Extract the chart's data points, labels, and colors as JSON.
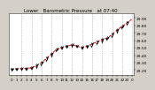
{
  "title": "Lower   Barometric Pressure   at 07:40",
  "hours": [
    0,
    1,
    2,
    3,
    4,
    5,
    6,
    7,
    8,
    9,
    10,
    11,
    12,
    13,
    14,
    15,
    16,
    17,
    18,
    19,
    20,
    21,
    22,
    23,
    24
  ],
  "pressure": [
    29.21,
    29.21,
    29.22,
    29.22,
    29.23,
    29.26,
    29.3,
    29.36,
    29.42,
    29.48,
    29.5,
    29.52,
    29.54,
    29.52,
    29.5,
    29.52,
    29.55,
    29.58,
    29.61,
    29.63,
    29.68,
    29.74,
    29.79,
    29.84,
    29.89
  ],
  "scatter_hours": [
    0.0,
    0.1,
    0.2,
    0.9,
    1.0,
    1.1,
    1.9,
    2.0,
    2.1,
    2.9,
    3.0,
    3.1,
    3.9,
    4.0,
    4.1,
    4.9,
    5.0,
    5.1,
    5.9,
    6.0,
    6.1,
    6.9,
    7.0,
    7.1,
    7.9,
    8.0,
    8.1,
    8.9,
    9.0,
    9.1,
    9.9,
    10.0,
    10.1,
    10.9,
    11.0,
    11.1,
    11.9,
    12.0,
    12.1,
    12.9,
    13.0,
    13.1,
    13.9,
    14.0,
    14.1,
    14.9,
    15.0,
    15.1,
    15.9,
    16.0,
    16.1,
    16.9,
    17.0,
    17.1,
    17.9,
    18.0,
    18.1,
    18.9,
    19.0,
    19.1,
    19.9,
    20.0,
    20.1,
    20.9,
    21.0,
    21.1,
    21.9,
    22.0,
    22.1,
    22.9,
    23.0,
    23.1
  ],
  "scatter_pressure": [
    29.21,
    29.2,
    29.22,
    29.21,
    29.21,
    29.22,
    29.22,
    29.22,
    29.23,
    29.22,
    29.22,
    29.23,
    29.23,
    29.23,
    29.24,
    29.24,
    29.26,
    29.27,
    29.28,
    29.3,
    29.31,
    29.34,
    29.36,
    29.37,
    29.4,
    29.42,
    29.43,
    29.46,
    29.48,
    29.49,
    29.5,
    29.5,
    29.51,
    29.51,
    29.52,
    29.53,
    29.53,
    29.54,
    29.55,
    29.52,
    29.52,
    29.53,
    29.5,
    29.5,
    29.51,
    29.51,
    29.52,
    29.52,
    29.53,
    29.55,
    29.56,
    29.56,
    29.58,
    29.59,
    29.59,
    29.61,
    29.62,
    29.62,
    29.63,
    29.64,
    29.66,
    29.68,
    29.69,
    29.72,
    29.74,
    29.75,
    29.77,
    29.79,
    29.8,
    29.82,
    29.84,
    29.85
  ],
  "yticks": [
    29.2,
    29.3,
    29.4,
    29.5,
    29.6,
    29.7,
    29.8,
    29.9
  ],
  "ytick_labels": [
    "29.20",
    "29.30",
    "29.40",
    "29.50",
    "29.60",
    "29.70",
    "29.80",
    "29.90"
  ],
  "ylim": [
    29.13,
    29.97
  ],
  "xlim": [
    -0.5,
    24.2
  ],
  "grid_hours": [
    2,
    4,
    6,
    8,
    10,
    12,
    14,
    16,
    18,
    20,
    22,
    24
  ],
  "xtick_positions": [
    0,
    1,
    2,
    3,
    4,
    5,
    6,
    7,
    8,
    9,
    10,
    11,
    12,
    13,
    14,
    15,
    16,
    17,
    18,
    19,
    20,
    21,
    22,
    23,
    24
  ],
  "xtick_labels": [
    "0",
    "1",
    "2",
    "3",
    "4",
    "5",
    "6",
    "7",
    "8",
    "9",
    "10",
    "11",
    "12",
    "13",
    "14",
    "15",
    "16",
    "17",
    "18",
    "19",
    "20",
    "21",
    "22",
    "23",
    "0"
  ],
  "bg_color": "#d4d0c8",
  "plot_bg_color": "#ffffff",
  "line_color": "#ff0000",
  "marker_color": "#000000",
  "grid_color": "#999999",
  "title_color": "#000000",
  "title_fontsize": 4.0,
  "tick_fontsize": 3.0,
  "label_fontsize": 3.2
}
